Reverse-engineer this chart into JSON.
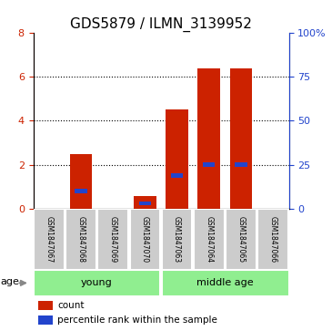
{
  "title": "GDS5879 / ILMN_3139952",
  "samples": [
    "GSM1847067",
    "GSM1847068",
    "GSM1847069",
    "GSM1847070",
    "GSM1847063",
    "GSM1847064",
    "GSM1847065",
    "GSM1847066"
  ],
  "count_values": [
    0.0,
    2.5,
    0.0,
    0.55,
    4.5,
    6.4,
    6.4,
    0.0
  ],
  "percentile_values": [
    0.0,
    10.0,
    0.0,
    3.0,
    18.75,
    25.0,
    25.0,
    0.0
  ],
  "left_ylim": [
    0,
    8
  ],
  "right_ylim": [
    0,
    100
  ],
  "left_yticks": [
    0,
    2,
    4,
    6,
    8
  ],
  "right_yticks": [
    0,
    25,
    50,
    75,
    100
  ],
  "right_yticklabels": [
    "0",
    "25",
    "50",
    "75",
    "100%"
  ],
  "bar_color": "#cc2200",
  "percentile_color": "#2244cc",
  "group_young_label": "young",
  "group_middle_label": "middle age",
  "group_color": "#90ee90",
  "age_label": "age",
  "legend_count": "count",
  "legend_percentile": "percentile rank within the sample",
  "bar_width": 0.7,
  "title_fontsize": 11,
  "axis_label_color_left": "#cc2200",
  "axis_label_color_right": "#2244cc",
  "background_color": "#ffffff",
  "xticklabel_bg": "#cccccc"
}
